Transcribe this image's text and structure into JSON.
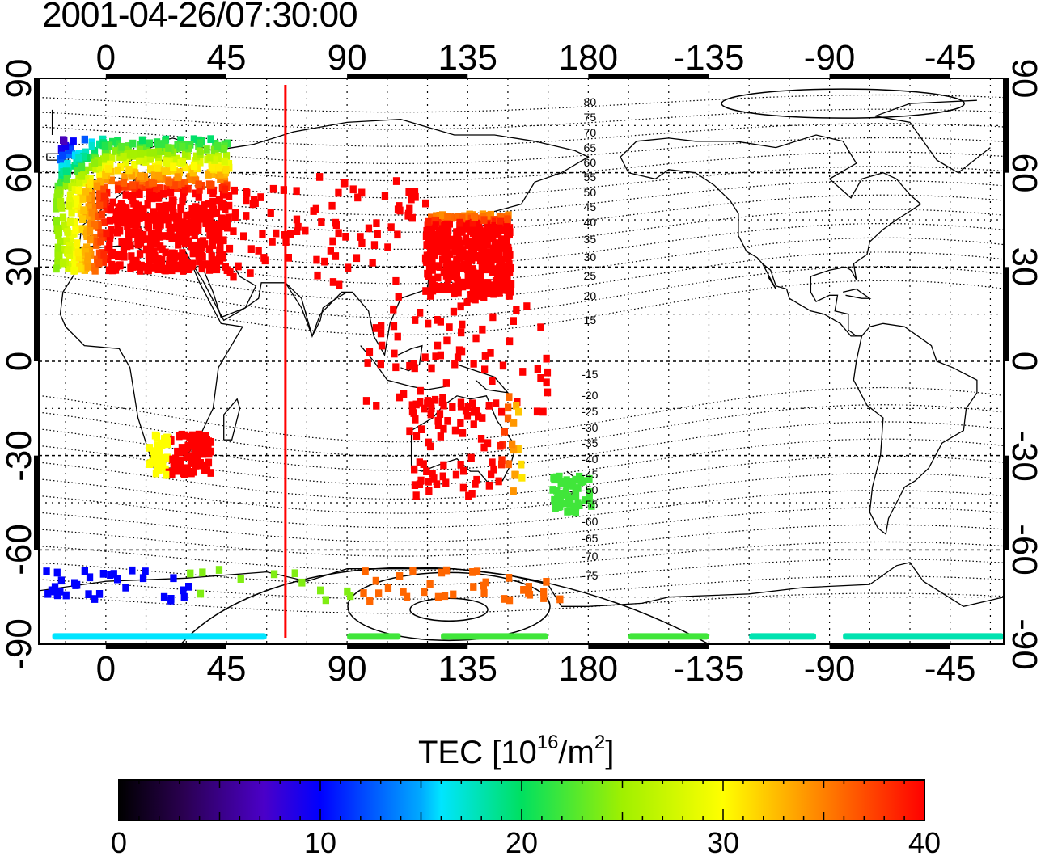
{
  "title": "2001-04-26/07:30:00",
  "map": {
    "top_ticks": [
      "0",
      "45",
      "90",
      "135",
      "180",
      "-135",
      "-90",
      "-45"
    ],
    "bottom_ticks": [
      "0",
      "45",
      "90",
      "135",
      "180",
      "-135",
      "-90",
      "-45"
    ],
    "left_ticks": [
      "90",
      "60",
      "30",
      "0",
      "-30",
      "-60",
      "-90"
    ],
    "right_ticks": [
      "90",
      "60",
      "30",
      "0",
      "-30",
      "-60",
      "-90"
    ],
    "lon_range": [
      -25,
      335
    ],
    "lat_range": [
      -90,
      90
    ],
    "grid": true,
    "terminator_longitude": 67,
    "terminator_color": "#ff0000",
    "contour_labels": [
      "80",
      "75",
      "70",
      "65",
      "60",
      "55",
      "50",
      "45",
      "40",
      "35",
      "30",
      "25",
      "20",
      "15",
      "-15",
      "-20",
      "-25",
      "-30",
      "-35",
      "-40",
      "-45",
      "-50",
      "-55",
      "-60",
      "-65",
      "-70",
      "-75"
    ]
  },
  "colorbar": {
    "label_main": "TEC  [10",
    "label_exp1": "16",
    "label_mid": "/m",
    "label_exp2": "2",
    "label_end": "]",
    "ticks": [
      "0",
      "10",
      "20",
      "30",
      "40"
    ],
    "range": [
      0,
      40
    ]
  }
}
